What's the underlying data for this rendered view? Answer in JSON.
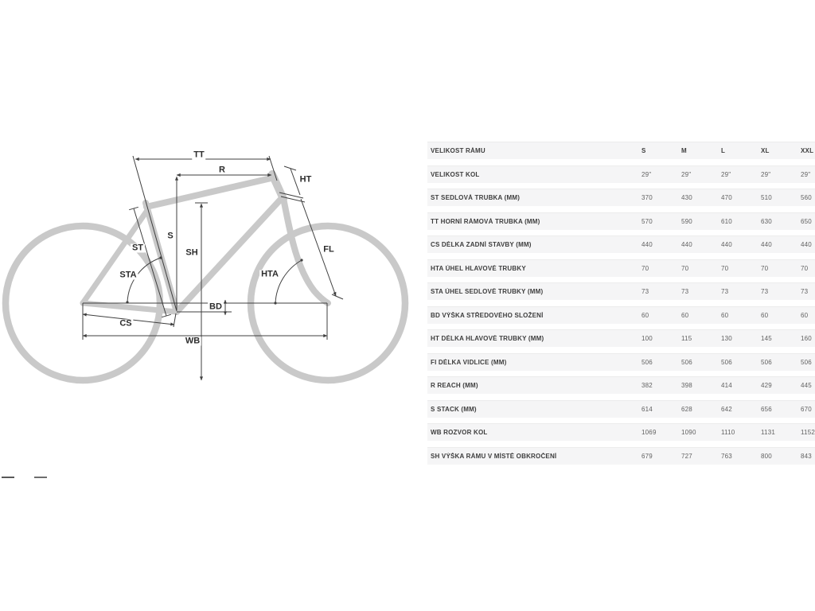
{
  "diagram": {
    "labels": {
      "tt": "TT",
      "r": "R",
      "ht": "HT",
      "s": "S",
      "sh": "SH",
      "st": "ST",
      "sta": "STA",
      "hta": "HTA",
      "fl": "FL",
      "bd": "BD",
      "cs": "CS",
      "wb": "WB"
    }
  },
  "table": {
    "header": {
      "label": "VELIKOST RÁMU",
      "columns": [
        "S",
        "M",
        "L",
        "XL",
        "XXL"
      ]
    },
    "rows": [
      {
        "label": "VELIKOST KOL",
        "values": [
          "29\"",
          "29\"",
          "29\"",
          "29\"",
          "29\""
        ]
      },
      {
        "label": "ST SEDLOVÁ TRUBKA (MM)",
        "values": [
          "370",
          "430",
          "470",
          "510",
          "560"
        ]
      },
      {
        "label": "TT HORNÍ RÁMOVÁ TRUBKA (MM)",
        "values": [
          "570",
          "590",
          "610",
          "630",
          "650"
        ]
      },
      {
        "label": "CS DÉLKA ZADNÍ STAVBY (MM)",
        "values": [
          "440",
          "440",
          "440",
          "440",
          "440"
        ]
      },
      {
        "label": "HTA ÚHEL HLAVOVÉ TRUBKY",
        "values": [
          "70",
          "70",
          "70",
          "70",
          "70"
        ]
      },
      {
        "label": "STA ÚHEL SEDLOVÉ TRUBKY (MM)",
        "values": [
          "73",
          "73",
          "73",
          "73",
          "73"
        ]
      },
      {
        "label": "BD VÝŠKA STŘEDOVÉHO SLOŽENÍ",
        "values": [
          "60",
          "60",
          "60",
          "60",
          "60"
        ]
      },
      {
        "label": "HT DÉLKA HLAVOVÉ TRUBKY (MM)",
        "values": [
          "100",
          "115",
          "130",
          "145",
          "160"
        ]
      },
      {
        "label": "FI DÉLKA VIDLICE (MM)",
        "values": [
          "506",
          "506",
          "506",
          "506",
          "506"
        ]
      },
      {
        "label": "R REACH (MM)",
        "values": [
          "382",
          "398",
          "414",
          "429",
          "445"
        ]
      },
      {
        "label": "S STACK (MM)",
        "values": [
          "614",
          "628",
          "642",
          "656",
          "670"
        ]
      },
      {
        "label": "WB ROZVOR KOL",
        "values": [
          "1069",
          "1090",
          "1110",
          "1131",
          "1152"
        ]
      },
      {
        "label": "SH VÝŠKA RÁMU V MÍSTĚ OBKROČENÍ",
        "values": [
          "679",
          "727",
          "763",
          "800",
          "843"
        ]
      }
    ]
  },
  "colors": {
    "frame_gray": "#c9c9c9",
    "dimension_line": "#3f3f3f",
    "row_background": "#f5f5f6"
  }
}
